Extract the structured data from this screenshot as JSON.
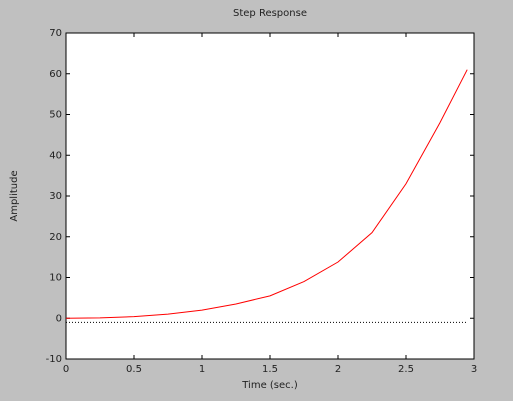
{
  "chart_data": {
    "type": "line",
    "title": "Step Response",
    "x_label": "Time (sec.)",
    "y_label": "Amplitude",
    "x": [
      0,
      0.25,
      0.5,
      0.75,
      1,
      1.25,
      1.5,
      1.75,
      2,
      2.25,
      2.5,
      2.75,
      2.95
    ],
    "series": [
      {
        "color": "#ff0000",
        "style": "solid",
        "values": [
          0,
          0.1,
          0.4,
          1.0,
          2.0,
          3.5,
          5.5,
          9.0,
          13.8,
          21,
          33,
          48,
          61
        ]
      },
      {
        "color": "#000000",
        "style": "dotted",
        "values": [
          -1,
          -1,
          -1,
          -1,
          -1,
          -1,
          -1,
          -1,
          -1,
          -1,
          -1,
          -1,
          -1
        ]
      }
    ],
    "xlim": [
      0,
      3
    ],
    "xticks": [
      0,
      0.5,
      1,
      1.5,
      2,
      2.5,
      3
    ],
    "ylim": [
      -10,
      70
    ],
    "yticks": [
      -10,
      0,
      10,
      20,
      30,
      40,
      50,
      60,
      70
    ],
    "grid": false
  }
}
